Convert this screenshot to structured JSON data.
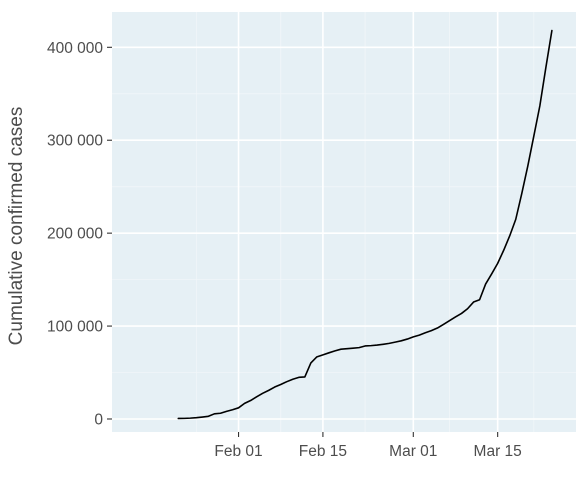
{
  "colors": {
    "panel_background": "#e6f0f5",
    "grid_major": "#ffffff",
    "grid_minor": "#f1f6f9",
    "line": "#000000",
    "text": "#4d4d4d",
    "tick": "#333333"
  },
  "chart_data": {
    "type": "line",
    "title": "",
    "xlabel": "",
    "ylabel": "Cumulative confirmed cases",
    "grid": true,
    "x_axis": {
      "type": "date",
      "range": [
        "2020-01-11",
        "2020-03-28"
      ],
      "ticks": [
        {
          "x": "2020-02-01",
          "label": "Feb 01"
        },
        {
          "x": "2020-02-15",
          "label": "Feb 15"
        },
        {
          "x": "2020-03-01",
          "label": "Mar 01"
        },
        {
          "x": "2020-03-15",
          "label": "Mar 15"
        }
      ]
    },
    "y_axis": {
      "range": [
        -14000,
        438000
      ],
      "ticks": [
        {
          "y": 0,
          "label": "0"
        },
        {
          "y": 100000,
          "label": "100 000"
        },
        {
          "y": 200000,
          "label": "200 000"
        },
        {
          "y": 300000,
          "label": "300 000"
        },
        {
          "y": 400000,
          "label": "400 000"
        }
      ]
    },
    "series": [
      {
        "points": [
          [
            "2020-01-22",
            555
          ],
          [
            "2020-01-23",
            654
          ],
          [
            "2020-01-24",
            941
          ],
          [
            "2020-01-25",
            1434
          ],
          [
            "2020-01-26",
            2118
          ],
          [
            "2020-01-27",
            2927
          ],
          [
            "2020-01-28",
            5578
          ],
          [
            "2020-01-29",
            6166
          ],
          [
            "2020-01-30",
            8234
          ],
          [
            "2020-01-31",
            9927
          ],
          [
            "2020-02-01",
            12038
          ],
          [
            "2020-02-02",
            16787
          ],
          [
            "2020-02-03",
            19881
          ],
          [
            "2020-02-04",
            23892
          ],
          [
            "2020-02-05",
            27635
          ],
          [
            "2020-02-06",
            30794
          ],
          [
            "2020-02-07",
            34391
          ],
          [
            "2020-02-08",
            37120
          ],
          [
            "2020-02-09",
            40150
          ],
          [
            "2020-02-10",
            42762
          ],
          [
            "2020-02-11",
            44802
          ],
          [
            "2020-02-12",
            45221
          ],
          [
            "2020-02-13",
            60368
          ],
          [
            "2020-02-14",
            66885
          ],
          [
            "2020-02-15",
            69030
          ],
          [
            "2020-02-16",
            71224
          ],
          [
            "2020-02-17",
            73258
          ],
          [
            "2020-02-18",
            75136
          ],
          [
            "2020-02-19",
            75639
          ],
          [
            "2020-02-20",
            76197
          ],
          [
            "2020-02-21",
            76819
          ],
          [
            "2020-02-22",
            78572
          ],
          [
            "2020-02-23",
            78958
          ],
          [
            "2020-02-24",
            79561
          ],
          [
            "2020-02-25",
            80406
          ],
          [
            "2020-02-26",
            81388
          ],
          [
            "2020-02-27",
            82746
          ],
          [
            "2020-02-28",
            84112
          ],
          [
            "2020-02-29",
            86011
          ],
          [
            "2020-03-01",
            88369
          ],
          [
            "2020-03-02",
            90306
          ],
          [
            "2020-03-03",
            92840
          ],
          [
            "2020-03-04",
            95120
          ],
          [
            "2020-03-05",
            97886
          ],
          [
            "2020-03-06",
            101801
          ],
          [
            "2020-03-07",
            105847
          ],
          [
            "2020-03-08",
            109821
          ],
          [
            "2020-03-09",
            113590
          ],
          [
            "2020-03-10",
            118620
          ],
          [
            "2020-03-11",
            125875
          ],
          [
            "2020-03-12",
            128352
          ],
          [
            "2020-03-13",
            145205
          ],
          [
            "2020-03-14",
            156101
          ],
          [
            "2020-03-15",
            167454
          ],
          [
            "2020-03-16",
            181574
          ],
          [
            "2020-03-17",
            197102
          ],
          [
            "2020-03-18",
            214821
          ],
          [
            "2020-03-19",
            242570
          ],
          [
            "2020-03-20",
            272208
          ],
          [
            "2020-03-21",
            304507
          ],
          [
            "2020-03-22",
            336953
          ],
          [
            "2020-03-23",
            378231
          ],
          [
            "2020-03-24",
            418041
          ]
        ]
      }
    ]
  }
}
